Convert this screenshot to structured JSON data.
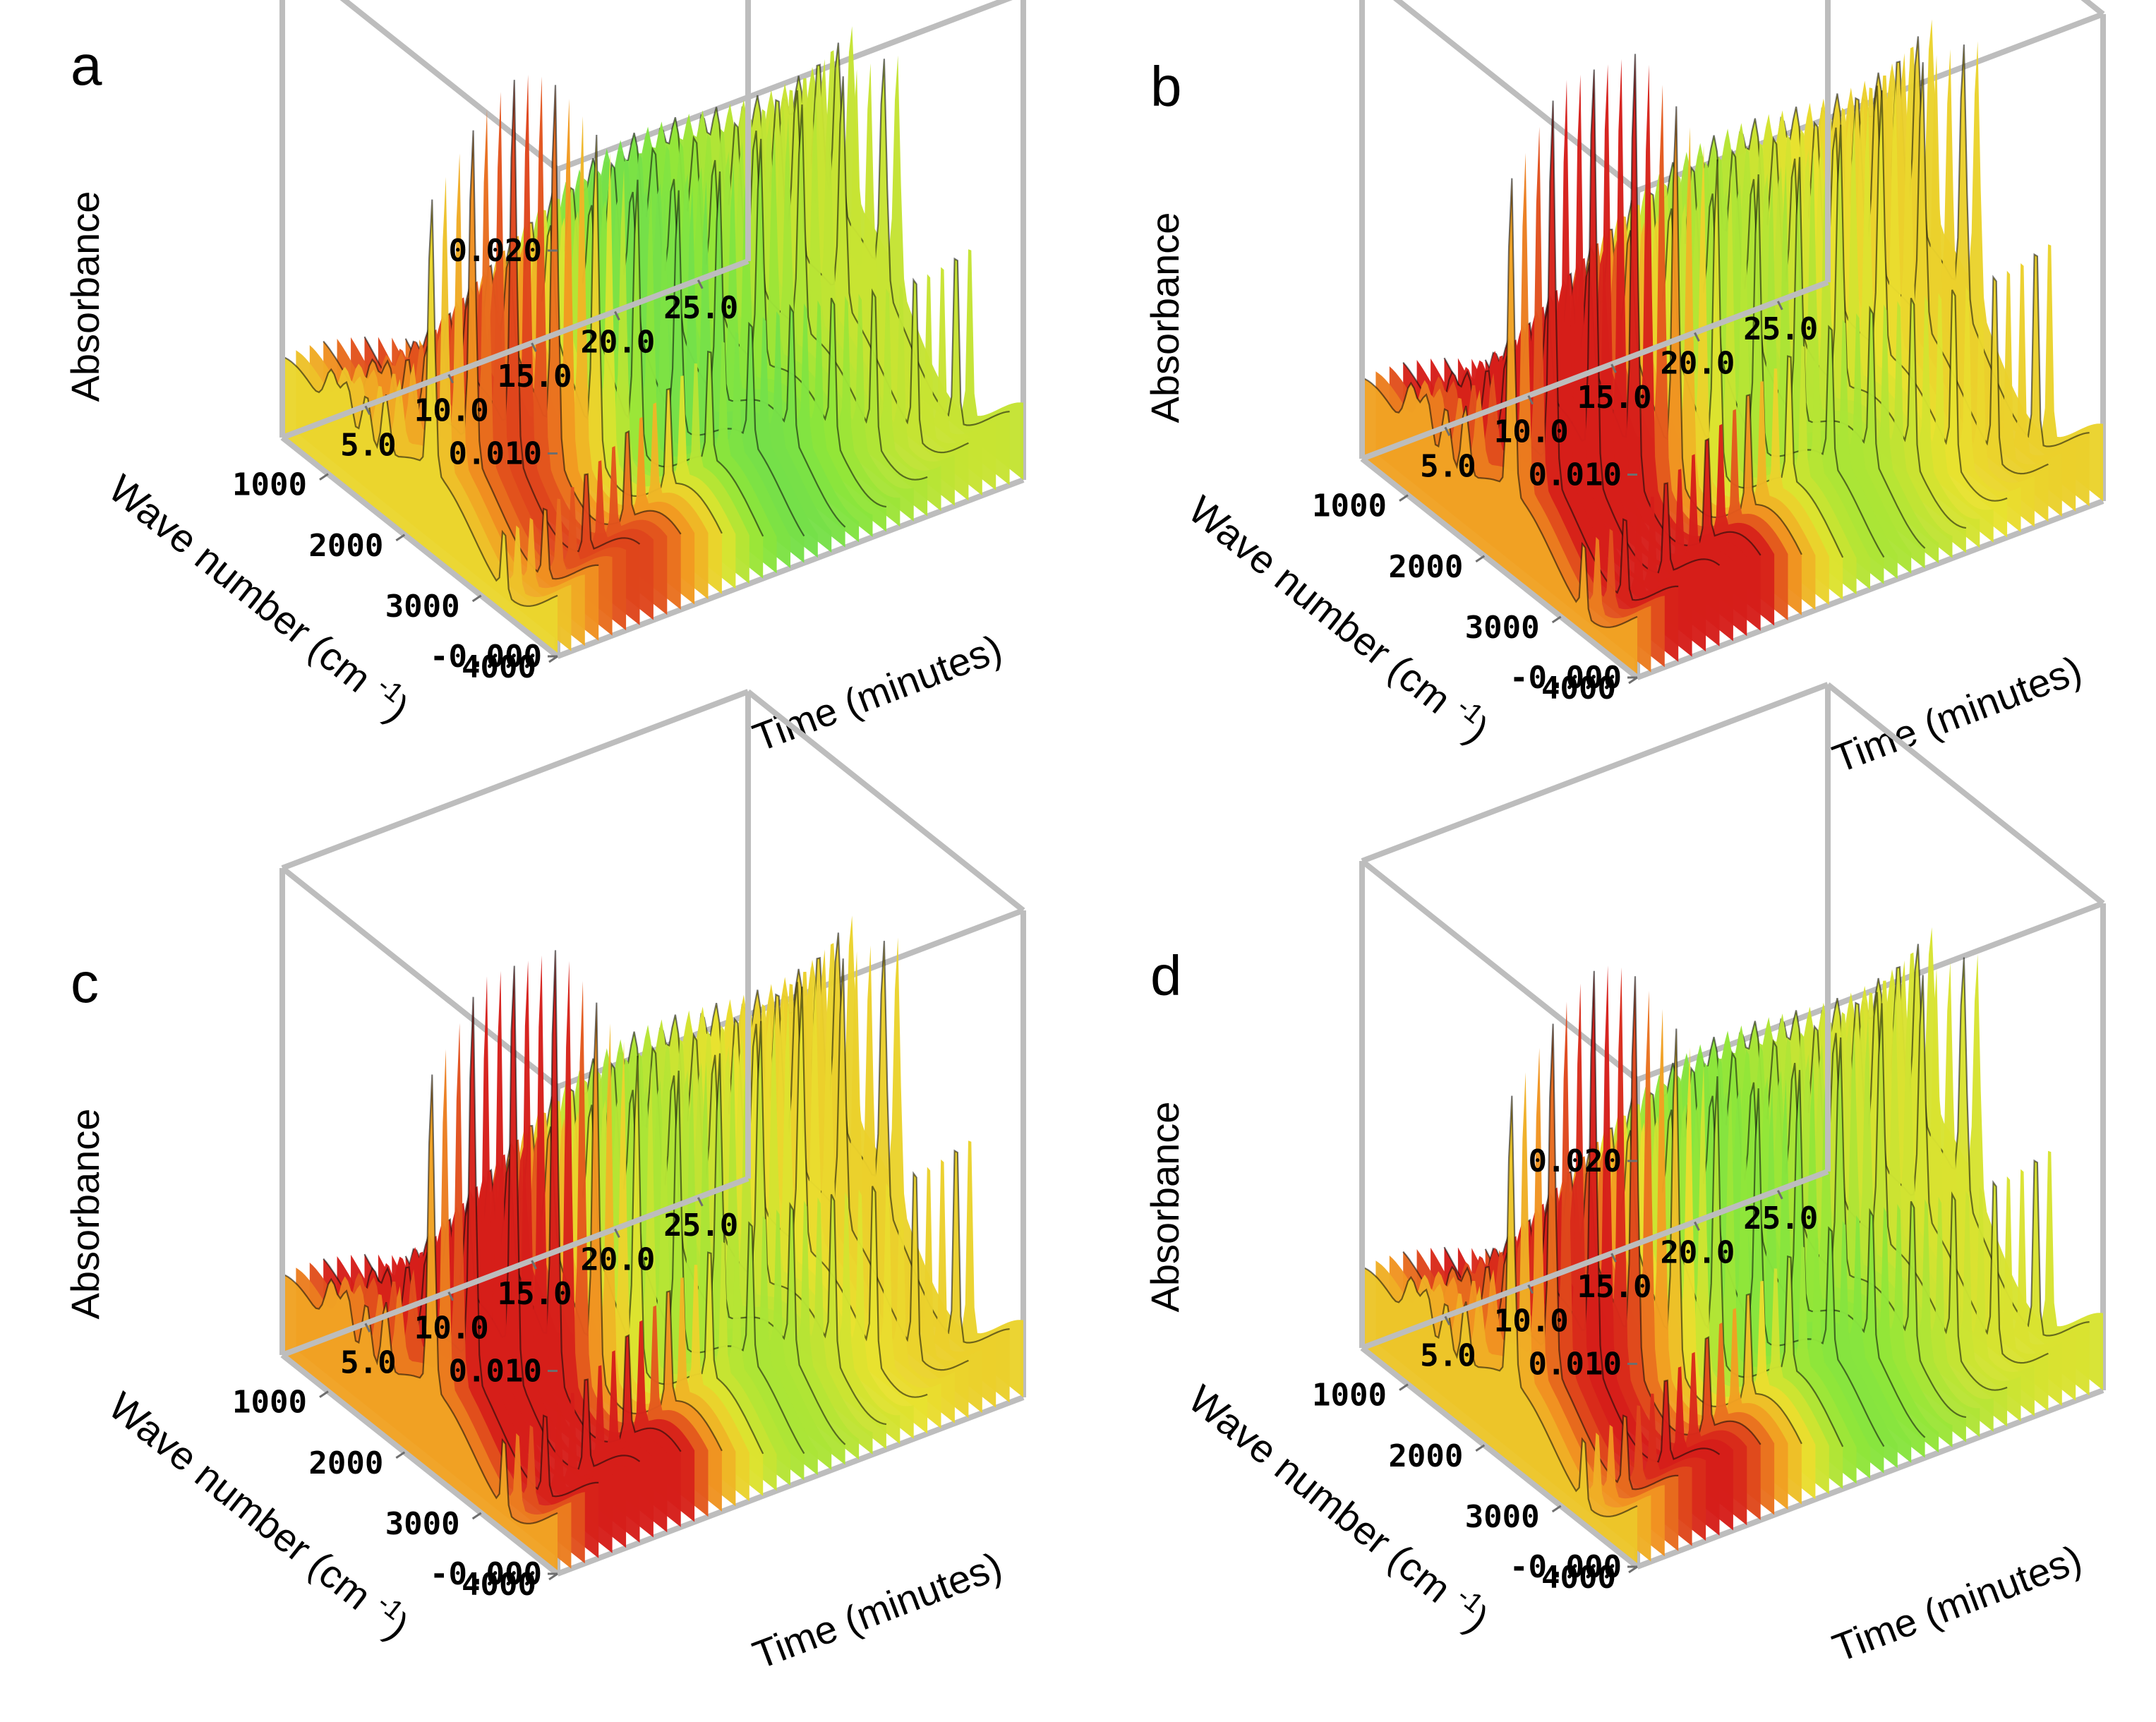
{
  "chart_data": [
    {
      "panel": "a",
      "type": "surface",
      "axis_titles": {
        "z": "Absorbance",
        "x": "Wave number (cm",
        "x_exponent": "-1",
        "x_close": ")",
        "y": "Time (minutes)"
      },
      "zticks": [
        "0.020",
        "0.010",
        "-0.000"
      ],
      "xticks": [
        "4000",
        "3000",
        "2000",
        "1000"
      ],
      "yticks": [
        "5.0",
        "10.0",
        "15.0",
        "20.0",
        "25.0"
      ],
      "xlim": [
        400,
        4000
      ],
      "ylim": [
        0,
        28
      ],
      "zlim": [
        0,
        0.024
      ],
      "max_absorbance": 0.019,
      "peaks_cm1": [
        3300,
        2350,
        1750,
        1500,
        1250,
        1050
      ],
      "colorscale": [
        "#06094f",
        "#1230a8",
        "#1e7fd8",
        "#2fd0e0",
        "#3fd56a",
        "#8ee53a",
        "#e8e22f",
        "#f29a21",
        "#d61e1a"
      ]
    },
    {
      "panel": "b",
      "type": "surface",
      "axis_titles": {
        "z": "Absorbance",
        "x": "Wave number (cm",
        "x_exponent": "-1",
        "x_close": ")",
        "y": "Time (minutes)"
      },
      "zticks": [
        "0.010",
        "-0.000"
      ],
      "xticks": [
        "4000",
        "3000",
        "2000",
        "1000"
      ],
      "yticks": [
        "5.0",
        "10.0",
        "15.0",
        "20.0",
        "25.0"
      ],
      "xlim": [
        400,
        4000
      ],
      "ylim": [
        0,
        28
      ],
      "zlim": [
        0,
        0.024
      ],
      "max_absorbance": 0.022,
      "peaks_cm1": [
        3300,
        2350,
        1750,
        1500,
        1250,
        1050
      ],
      "colorscale": [
        "#06094f",
        "#1230a8",
        "#1e7fd8",
        "#2fd0e0",
        "#3fd56a",
        "#8ee53a",
        "#e8e22f",
        "#f29a21",
        "#d61e1a"
      ]
    },
    {
      "panel": "c",
      "type": "surface",
      "axis_titles": {
        "z": "Absorbance",
        "x": "Wave number (cm",
        "x_exponent": "-1",
        "x_close": ")",
        "y": "Time (minutes)"
      },
      "zticks": [
        "0.010",
        "-0.000"
      ],
      "xticks": [
        "4000",
        "3000",
        "2000",
        "1000"
      ],
      "yticks": [
        "5.0",
        "10.0",
        "15.0",
        "20.0",
        "25.0"
      ],
      "xlim": [
        400,
        4000
      ],
      "ylim": [
        0,
        28
      ],
      "zlim": [
        0,
        0.024
      ],
      "max_absorbance": 0.022,
      "peaks_cm1": [
        3300,
        2350,
        1750,
        1500,
        1250,
        1050
      ],
      "colorscale": [
        "#06094f",
        "#1230a8",
        "#1e7fd8",
        "#2fd0e0",
        "#3fd56a",
        "#8ee53a",
        "#e8e22f",
        "#f29a21",
        "#d61e1a"
      ]
    },
    {
      "panel": "d",
      "type": "surface",
      "axis_titles": {
        "z": "Absorbance",
        "x": "Wave number (cm",
        "x_exponent": "-1",
        "x_close": ")",
        "y": "Time (minutes)"
      },
      "zticks": [
        "0.020",
        "0.010",
        "-0.000"
      ],
      "xticks": [
        "4000",
        "3000",
        "2000",
        "1000"
      ],
      "yticks": [
        "5.0",
        "10.0",
        "15.0",
        "20.0",
        "25.0"
      ],
      "xlim": [
        400,
        4000
      ],
      "ylim": [
        0,
        28
      ],
      "zlim": [
        0,
        0.024
      ],
      "max_absorbance": 0.02,
      "peaks_cm1": [
        3300,
        2350,
        1750,
        1500,
        1250,
        1050
      ],
      "colorscale": [
        "#06094f",
        "#1230a8",
        "#1e7fd8",
        "#2fd0e0",
        "#3fd56a",
        "#8ee53a",
        "#e8e22f",
        "#f29a21",
        "#d61e1a"
      ]
    }
  ]
}
